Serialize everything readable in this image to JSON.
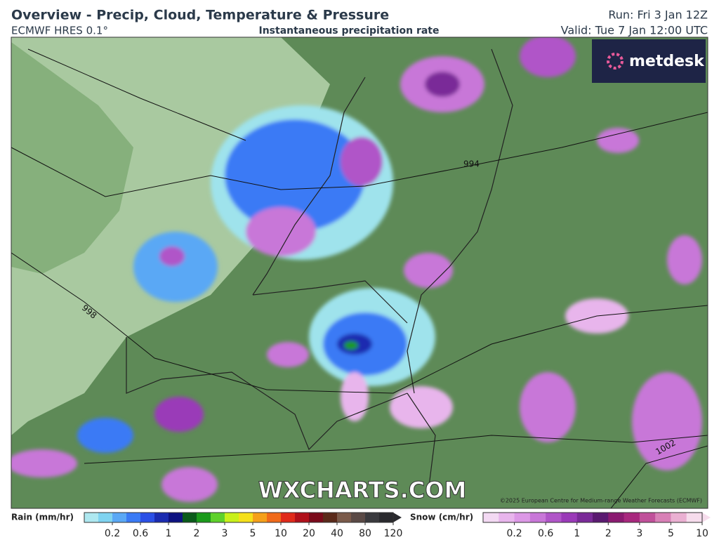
{
  "header": {
    "title": "Overview - Precip, Cloud, Temperature & Pressure",
    "model": "ECMWF HRES 0.1°",
    "layer": "Instantaneous precipitation rate",
    "run": "Run: Fri 3 Jan 12Z",
    "valid": "Valid: Tue 7 Jan 12:00 UTC"
  },
  "map": {
    "logo": "metdesk",
    "watermark": "WXCHARTS.COM",
    "copyright": "©2025 European Centre for Medium-range Weather Forecasts (ECMWF)",
    "isobars": [
      "994",
      "998",
      "1002"
    ]
  },
  "legend": {
    "rain": {
      "label": "Rain (mm/hr)",
      "ticks": [
        "0.2",
        "0.6",
        "1",
        "2",
        "3",
        "5",
        "10",
        "20",
        "40",
        "80",
        "120"
      ],
      "colors": [
        "#aee8f0",
        "#7fd3f0",
        "#5aa8f5",
        "#3a7af5",
        "#2a4fe6",
        "#1a2bb0",
        "#0d1280",
        "#0a5a1a",
        "#1a9a1a",
        "#5ed12a",
        "#c8f01a",
        "#f5e01a",
        "#f5a01a",
        "#f06a1a",
        "#e02a1a",
        "#b0101a",
        "#7a0a1a",
        "#5a2a1a",
        "#7a5a4a",
        "#5a4a46",
        "#3a3a3e",
        "#2a2a2e"
      ]
    },
    "snow": {
      "label": "Snow (cm/hr)",
      "ticks": [
        "0.2",
        "0.6",
        "1",
        "2",
        "3",
        "5",
        "10"
      ],
      "colors": [
        "#f3d9f3",
        "#e8b5ec",
        "#dc98e6",
        "#c877d8",
        "#b055c8",
        "#9a3ab8",
        "#7a2a98",
        "#5a1a70",
        "#8a1a70",
        "#a8287e",
        "#c0509a",
        "#d880b6",
        "#eab0d2",
        "#f6dcec"
      ]
    }
  }
}
